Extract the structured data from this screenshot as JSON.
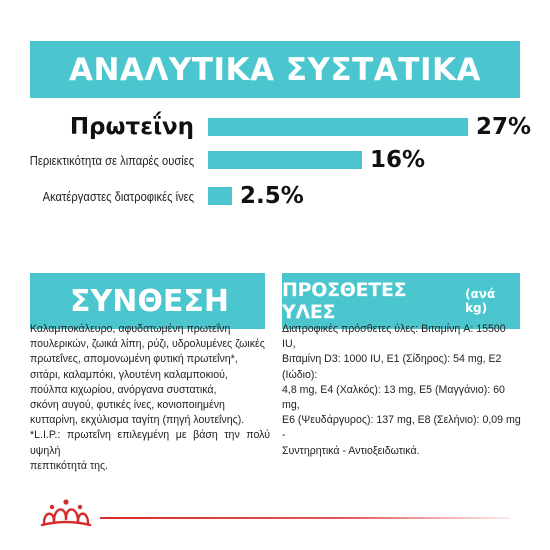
{
  "analysis": {
    "title": "ΑΝΑΛΥΤΙΚΑ ΣΥΣΤΑΤΙΚΑ",
    "rows": [
      {
        "label": "Πρωτεΐνη",
        "value": "27%",
        "amount": 27
      },
      {
        "label": "Περιεκτικότητα σε λιπαρές ουσίες",
        "value": "16%",
        "amount": 16
      },
      {
        "label": "Ακατέργαστες διατροφικές ίνες",
        "value": "2.5%",
        "amount": 2.5
      }
    ]
  },
  "composition": {
    "title": "ΣΥΝΘΕΣΗ",
    "lines": [
      "Καλαμποκάλευρο, αφυδατωμένη πρωτεΐνη",
      "πουλερικών, ζωικά λίπη, ρύζι, υδρολυμένες ζωικές",
      "πρωτεΐνες, απομονωμένη φυτική πρωτεΐνη*,",
      "σιτάρι, καλαμπόκι, γλουτένη καλαμποκιού,",
      "πούλπα κιχωρίου, ανόργανα συστατικά,",
      "σκόνη αυγού, φυτικές ίνες, κονιοποιημένη",
      "κυτταρίνη, εκχύλισμα ταγίτη (πηγή λουτεΐνης).",
      "*L.I.P.: πρωτεΐνη επιλεγμένη με βάση την πολύ υψηλή",
      "πεπτικότητά της."
    ]
  },
  "additives": {
    "title": "ΠΡΟΣΘΕΤΕΣ ΥΛΕΣ",
    "title_suffix": "(ανά kg)",
    "lines": [
      "Διατροφικές πρόσθετες ύλες: Βιταμίνη A: 15500 IU,",
      "Βιταμίνη D3: 1000 IU, E1 (Σίδηρος): 54 mg, E2 (Ιώδιο):",
      "4,8 mg, E4 (Χαλκός): 13 mg, E5 (Μαγγάνιο): 60 mg,",
      "E6 (Ψευδάργυρος): 137 mg, E8 (Σελήνιο): 0,09 mg -",
      "Συντηρητικά - Αντιοξειδωτικά."
    ]
  },
  "brand": {
    "logo": "royal-canin-crown-icon",
    "accent": "#4bc6cf",
    "logo_color": "#d62b2b"
  }
}
